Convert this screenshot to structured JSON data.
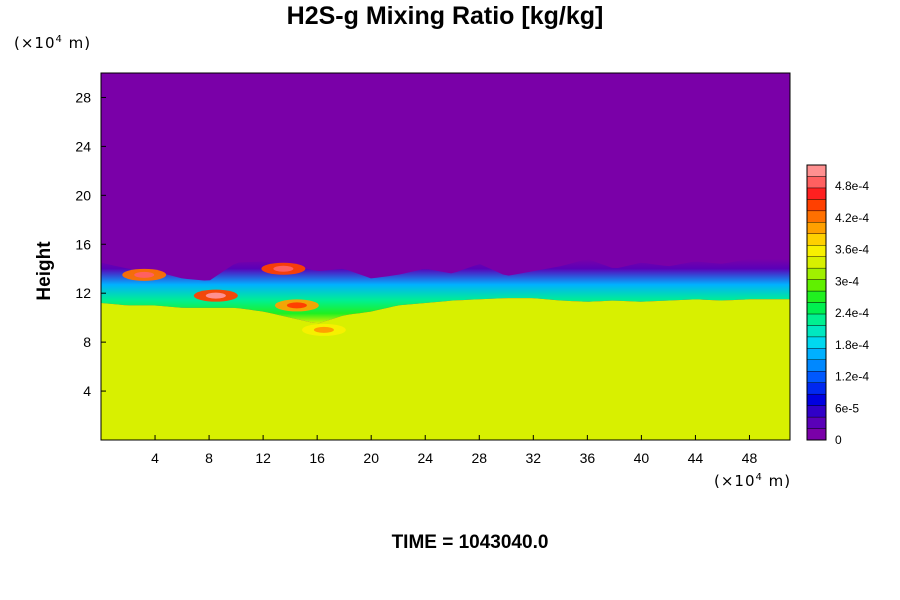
{
  "chart_data": {
    "type": "heatmap",
    "title": "H2S-g Mixing Ratio [kg/kg]",
    "ylabel": "Height",
    "xlabel": "",
    "y_unit": {
      "prefix": "(×10",
      "exp": "4",
      "suffix": " m)"
    },
    "x_unit": {
      "prefix": "(×10",
      "exp": "4",
      "suffix": " m)"
    },
    "xlim": [
      0,
      51
    ],
    "ylim": [
      0,
      30
    ],
    "x_ticks": [
      4,
      8,
      12,
      16,
      20,
      24,
      28,
      32,
      36,
      40,
      44,
      48
    ],
    "x_tick_labels": [
      "4",
      "8",
      "12",
      "16",
      "20",
      "24",
      "28",
      "32",
      "36",
      "40",
      "44",
      "48"
    ],
    "y_ticks": [
      4,
      8,
      12,
      16,
      20,
      24,
      28
    ],
    "y_tick_labels": [
      "4",
      "8",
      "12",
      "16",
      "20",
      "24",
      "28"
    ],
    "colorbar": {
      "min": 0,
      "max": 0.00052,
      "tick_values": [
        0,
        6e-05,
        0.00012,
        0.00018,
        0.00024,
        0.0003,
        0.00036,
        0.00042,
        0.00048
      ],
      "tick_labels": [
        "0",
        "6e-5",
        "1.2e-4",
        "1.8e-4",
        "2.4e-4",
        "3e-4",
        "3.6e-4",
        "4.2e-4",
        "4.8e-4"
      ],
      "colors": [
        "#7a00a8",
        "#5a00b8",
        "#3000c8",
        "#0000e0",
        "#0028f0",
        "#0058ff",
        "#0088ff",
        "#00b0ff",
        "#00d8f0",
        "#00e8c0",
        "#00f090",
        "#00f050",
        "#20f020",
        "#60f000",
        "#a0f000",
        "#d8f000",
        "#f8f000",
        "#ffd000",
        "#ffa000",
        "#ff7000",
        "#ff4000",
        "#ff2020",
        "#ff6060",
        "#ff9090"
      ]
    },
    "field": {
      "upper_value": 0,
      "lower_value": 0.00034,
      "interface_height_profile": {
        "x": [
          0,
          2,
          4,
          6,
          8,
          10,
          12,
          14,
          16,
          18,
          20,
          22,
          24,
          26,
          28,
          30,
          32,
          34,
          36,
          38,
          40,
          42,
          44,
          46,
          48,
          51
        ],
        "top_of_mixing_layer": [
          14.5,
          14.0,
          13.8,
          13.2,
          13.0,
          14.5,
          14.6,
          14.3,
          13.8,
          14.0,
          13.2,
          13.5,
          14.0,
          13.6,
          14.4,
          13.4,
          13.8,
          14.2,
          14.8,
          14.0,
          14.5,
          14.2,
          14.6,
          14.4,
          14.8,
          14.8
        ],
        "base_of_mixing_layer": [
          11.2,
          11.0,
          11.0,
          10.8,
          10.8,
          10.8,
          10.5,
          10.0,
          9.5,
          10.2,
          10.5,
          11.0,
          11.2,
          11.4,
          11.5,
          11.6,
          11.6,
          11.4,
          11.3,
          11.4,
          11.3,
          11.4,
          11.5,
          11.4,
          11.5,
          11.5
        ]
      },
      "high_concentration_patches": [
        {
          "x": 3.2,
          "y": 13.5,
          "value": 0.00048
        },
        {
          "x": 8.5,
          "y": 11.8,
          "value": 0.0005
        },
        {
          "x": 13.5,
          "y": 14.0,
          "value": 0.00049
        },
        {
          "x": 14.5,
          "y": 11.0,
          "value": 0.00044
        },
        {
          "x": 16.5,
          "y": 9.0,
          "value": 0.0004
        }
      ]
    }
  },
  "footer": {
    "time_label": "TIME = 1043040.0"
  }
}
